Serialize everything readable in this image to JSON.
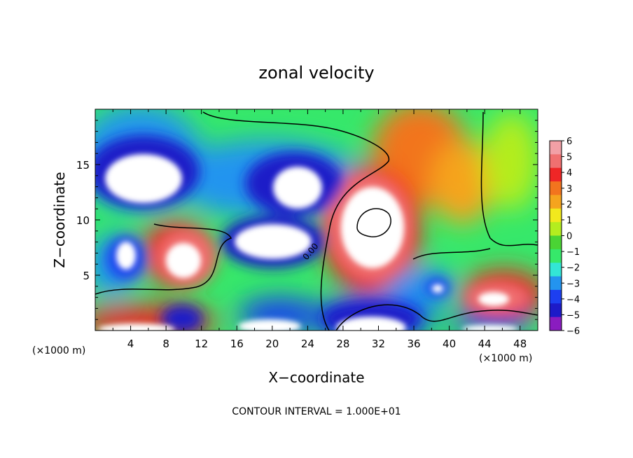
{
  "chart_data": {
    "type": "heatmap",
    "title": "zonal velocity",
    "xlabel": "X−coordinate",
    "ylabel": "Z−coordinate",
    "xunit": "(×1000 m)",
    "yunit": "(×1000 m)",
    "xlim": [
      0,
      50
    ],
    "ylim": [
      0,
      20
    ],
    "xticks": [
      4,
      8,
      12,
      16,
      20,
      24,
      28,
      32,
      36,
      40,
      44,
      48
    ],
    "yticks": [
      5,
      10,
      15
    ],
    "footnote": "CONTOUR INTERVAL = 1.000E+01",
    "contour_label": "0.00",
    "colorbar": {
      "levels": [
        6,
        5,
        4,
        3,
        2,
        1,
        0,
        -1,
        -2,
        -3,
        -4,
        -5,
        -6
      ],
      "colors": [
        "#f2a0a6",
        "#f07070",
        "#ef2626",
        "#f2741e",
        "#f5a41e",
        "#f2e91d",
        "#b4ed1f",
        "#4ad434",
        "#36e86a",
        "#33e6d6",
        "#2394ef",
        "#1d3ff0",
        "#1d1ac8",
        "#8a1cc0"
      ]
    },
    "features": [
      {
        "type": "lobe",
        "sign": "negative",
        "x": 6.2,
        "z": 14.4,
        "note": "saturated below -6"
      },
      {
        "type": "lobe",
        "sign": "negative",
        "x": 21.5,
        "z": 12.5
      },
      {
        "type": "lobe",
        "sign": "negative",
        "x": 19.5,
        "z": 7.5
      },
      {
        "type": "lobe",
        "sign": "negative",
        "x": 3.5,
        "z": 7.0
      },
      {
        "type": "lobe",
        "sign": "positive",
        "x": 9.0,
        "z": 6.5
      },
      {
        "type": "lobe",
        "sign": "positive",
        "x": 31.0,
        "z": 9.0
      },
      {
        "type": "lobe",
        "sign": "positive",
        "x": 45.5,
        "z": 3.0
      },
      {
        "type": "lobe",
        "sign": "positive",
        "x": 31.0,
        "z": 1.0
      },
      {
        "type": "lobe",
        "sign": "negative",
        "x": 39.0,
        "z": 3.8
      }
    ]
  }
}
